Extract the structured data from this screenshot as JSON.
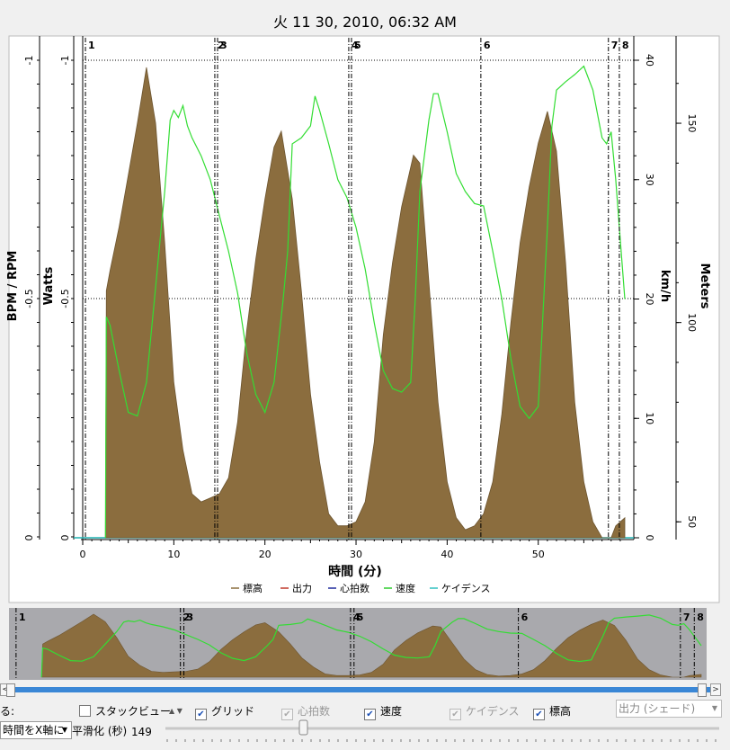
{
  "chart_title": "火 11 30, 2010, 06:32 AM",
  "y_axes": {
    "bpm_rpm": {
      "label": "BPM / RPM",
      "ticks": [
        "-1",
        "-0.5",
        "0"
      ]
    },
    "watts": {
      "label": "Watts",
      "ticks": [
        "-1",
        "-0.5",
        "0"
      ]
    },
    "kmh": {
      "label": "km/h",
      "ticks": [
        "40",
        "30",
        "20",
        "10",
        "0"
      ]
    },
    "meters": {
      "label": "Meters",
      "ticks": [
        "150",
        "100",
        "50"
      ]
    }
  },
  "x_axis": {
    "label": "時間 (分)",
    "ticks": [
      "0",
      "10",
      "20",
      "30",
      "40",
      "50"
    ]
  },
  "intervals": [
    "1",
    "2",
    "3",
    "4",
    "5",
    "6",
    "7",
    "8"
  ],
  "legend": [
    {
      "label": "標高",
      "color": "#8b6d3e"
    },
    {
      "label": "出力",
      "color": "#c0392b"
    },
    {
      "label": "心拍数",
      "color": "#1f2a9c"
    },
    {
      "label": "速度",
      "color": "#2ecc2e"
    },
    {
      "label": "ケイデンス",
      "color": "#30c0c0"
    }
  ],
  "colors": {
    "elevation": "#8b6d3e",
    "speed": "#33dd33",
    "overview_bg": "#a9a9ad",
    "scrollbar": "#3a87d6"
  },
  "chart_data": {
    "type": "area",
    "x_unit": "分",
    "xlim": [
      0,
      59.5
    ],
    "series": [
      {
        "name": "標高",
        "axis": "Meters",
        "type": "area",
        "x": [
          2.5,
          2.6,
          3,
          4,
          5,
          6,
          7,
          8,
          9,
          10,
          11,
          12,
          13,
          14,
          15,
          16,
          17,
          18,
          19,
          20,
          21,
          21.8,
          23,
          24,
          25,
          26,
          27,
          28,
          29,
          30,
          31,
          32,
          33,
          34,
          35,
          36.3,
          37,
          38,
          39,
          40,
          41,
          42,
          43,
          44,
          45,
          46,
          47,
          48,
          49,
          50,
          51,
          52,
          53,
          54,
          55,
          56,
          57,
          57.5,
          58,
          58.5,
          59,
          59.5
        ],
        "values": [
          46,
          108,
          113,
          124,
          137,
          150,
          164,
          150,
          120,
          85,
          68,
          57,
          55,
          56,
          57,
          61,
          75,
          98,
          116,
          131,
          144,
          148,
          131,
          108,
          82,
          65,
          52,
          49,
          49,
          50,
          55,
          70,
          97,
          115,
          129,
          142,
          140,
          110,
          80,
          60,
          51,
          48,
          49,
          52,
          60,
          77,
          100,
          120,
          134,
          145,
          153,
          143,
          115,
          80,
          60,
          50,
          46,
          46,
          46,
          49,
          50,
          51
        ]
      },
      {
        "name": "速度",
        "axis": "km/h",
        "type": "line",
        "x": [
          2.5,
          2.6,
          3,
          4,
          5,
          6,
          7,
          8,
          9,
          9.6,
          10,
          10.5,
          11,
          11.5,
          12,
          13,
          14,
          15,
          16,
          17,
          18,
          19,
          20,
          21,
          22,
          22.5,
          23,
          24,
          25,
          25.5,
          26,
          27,
          28,
          29,
          30,
          31,
          32,
          33,
          34,
          35,
          36,
          36.5,
          37,
          38,
          38.5,
          39,
          40,
          41,
          42,
          43,
          44,
          45,
          46,
          47,
          48,
          49,
          50,
          51,
          51.5,
          52,
          53,
          54,
          55,
          56,
          57,
          57.5,
          58,
          58.5,
          59,
          59.5
        ],
        "values": [
          0,
          18.5,
          17.8,
          14,
          10.5,
          10.2,
          13,
          21,
          29,
          35,
          35.8,
          35.2,
          36.2,
          34.5,
          33.5,
          32,
          30,
          27,
          24,
          20.5,
          15.5,
          12,
          10.5,
          13,
          20,
          24,
          33,
          33.5,
          34.5,
          37,
          35.8,
          33,
          30,
          28.5,
          26,
          22.5,
          18,
          14,
          12.5,
          12.2,
          13,
          20,
          29,
          35,
          37.2,
          37.2,
          34,
          30.5,
          29,
          28,
          27.8,
          24,
          20,
          15,
          11,
          10,
          11,
          26,
          34.5,
          37.5,
          38.2,
          38.8,
          39.5,
          37.5,
          33.5,
          33,
          34,
          30,
          25,
          20
        ]
      }
    ],
    "marker_x": [
      0.3,
      14.5,
      14.8,
      29.2,
      29.5,
      43.7,
      57.7,
      58.9
    ]
  },
  "controls": {
    "show_label": "る:",
    "stack_view": "スタックビュー",
    "grid": "グリッド",
    "heart_rate": "心拍数",
    "speed": "速度",
    "cadence": "ケイデンス",
    "elevation": "標高",
    "shade_select": "出力 (シェード)",
    "x_axis_select": "時間をX軸に",
    "smoothing_label": "平滑化 (秒)",
    "smoothing_value": "149",
    "sort_arrow": "▲ ▼"
  }
}
